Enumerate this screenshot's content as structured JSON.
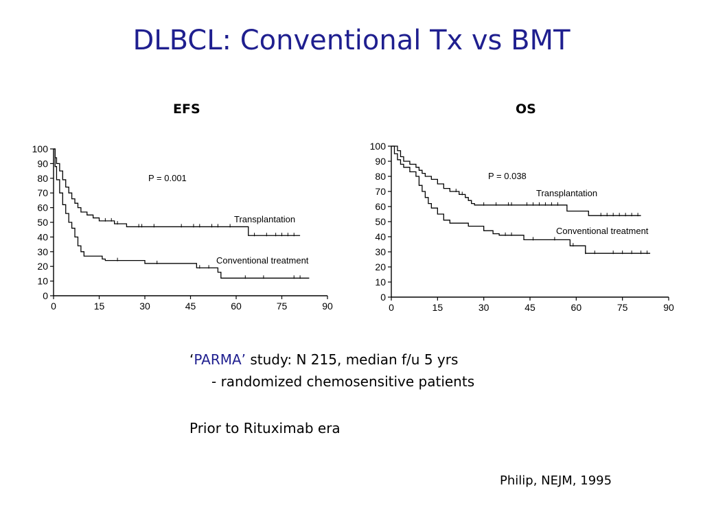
{
  "slide": {
    "title": "DLBCL: Conventional Tx vs BMT",
    "notes": {
      "quote_open": "‘",
      "study_name": "PARMA’",
      "study_rest": " study: N 215, median f/u 5 yrs",
      "line2": "- randomized chemosensitive patients",
      "line3": "Prior to Rituximab era"
    },
    "citation": "Philip, NEJM, 1995"
  },
  "chart_data": [
    {
      "type": "line",
      "title": "EFS",
      "xlabel": "",
      "ylabel": "",
      "xlim": [
        0,
        90
      ],
      "ylim": [
        0,
        100
      ],
      "xticks": [
        0,
        15,
        30,
        45,
        60,
        75,
        90
      ],
      "yticks": [
        0,
        10,
        20,
        30,
        40,
        50,
        60,
        70,
        80,
        90,
        100
      ],
      "annotation": "P = 0.001",
      "series": [
        {
          "name": "Transplantation",
          "step": [
            [
              0,
              100
            ],
            [
              0.5,
              94
            ],
            [
              1,
              90
            ],
            [
              2,
              85
            ],
            [
              3,
              79
            ],
            [
              4,
              74
            ],
            [
              5,
              70
            ],
            [
              6,
              66
            ],
            [
              7,
              63
            ],
            [
              8,
              60
            ],
            [
              9,
              57
            ],
            [
              11,
              55
            ],
            [
              13,
              53
            ],
            [
              15,
              51
            ],
            [
              20,
              49
            ],
            [
              24,
              47
            ],
            [
              45,
              47
            ],
            [
              50,
              47
            ],
            [
              64,
              47
            ],
            [
              64,
              41
            ],
            [
              81,
              41
            ]
          ],
          "censored": [
            17,
            19,
            21,
            28,
            29,
            33,
            42,
            46,
            48,
            52,
            54,
            58,
            66,
            70,
            73,
            75,
            77,
            79
          ]
        },
        {
          "name": "Conventional treatment",
          "step": [
            [
              0,
              100
            ],
            [
              0.5,
              88
            ],
            [
              1,
              79
            ],
            [
              2,
              70
            ],
            [
              3,
              62
            ],
            [
              4,
              56
            ],
            [
              5,
              50
            ],
            [
              6,
              46
            ],
            [
              7,
              40
            ],
            [
              8,
              34
            ],
            [
              9,
              30
            ],
            [
              10,
              27
            ],
            [
              16,
              25
            ],
            [
              17,
              24
            ],
            [
              30,
              22
            ],
            [
              47,
              19
            ],
            [
              54,
              16
            ],
            [
              55,
              12
            ],
            [
              84,
              12
            ]
          ],
          "censored": [
            21,
            34,
            48,
            51,
            63,
            69,
            79,
            81
          ]
        }
      ]
    },
    {
      "type": "line",
      "title": "OS",
      "xlabel": "",
      "ylabel": "",
      "xlim": [
        0,
        90
      ],
      "ylim": [
        0,
        100
      ],
      "xticks": [
        0,
        15,
        30,
        45,
        60,
        75,
        90
      ],
      "yticks": [
        0,
        10,
        20,
        30,
        40,
        50,
        60,
        70,
        80,
        90,
        100
      ],
      "annotation": "P = 0.038",
      "series": [
        {
          "name": "Transplantation",
          "step": [
            [
              0,
              100
            ],
            [
              2,
              97
            ],
            [
              3,
              93
            ],
            [
              4,
              90
            ],
            [
              6,
              88
            ],
            [
              8,
              86
            ],
            [
              9,
              84
            ],
            [
              10,
              82
            ],
            [
              11,
              80
            ],
            [
              13,
              78
            ],
            [
              15,
              75
            ],
            [
              17,
              72
            ],
            [
              19,
              70
            ],
            [
              22,
              68
            ],
            [
              24,
              66
            ],
            [
              25,
              64
            ],
            [
              26,
              62
            ],
            [
              27,
              61
            ],
            [
              56,
              61
            ],
            [
              57,
              57
            ],
            [
              64,
              57
            ],
            [
              64,
              54
            ],
            [
              81,
              54
            ]
          ],
          "censored": [
            21,
            23,
            30,
            34,
            38,
            39,
            44,
            46,
            48,
            50,
            52,
            54,
            68,
            70,
            72,
            74,
            76,
            78,
            80
          ]
        },
        {
          "name": "Conventional treatment",
          "step": [
            [
              0,
              100
            ],
            [
              1,
              95
            ],
            [
              2,
              91
            ],
            [
              3,
              88
            ],
            [
              4,
              86
            ],
            [
              6,
              83
            ],
            [
              8,
              80
            ],
            [
              9,
              74
            ],
            [
              10,
              70
            ],
            [
              11,
              66
            ],
            [
              12,
              62
            ],
            [
              13,
              59
            ],
            [
              15,
              55
            ],
            [
              17,
              51
            ],
            [
              19,
              49
            ],
            [
              25,
              47
            ],
            [
              30,
              44
            ],
            [
              33,
              42
            ],
            [
              35,
              41
            ],
            [
              43,
              38
            ],
            [
              57,
              38
            ],
            [
              58,
              34
            ],
            [
              63,
              34
            ],
            [
              63,
              29
            ],
            [
              84,
              29
            ]
          ],
          "censored": [
            37,
            39,
            46,
            53,
            59,
            63,
            66,
            72,
            75,
            78,
            81,
            83
          ]
        }
      ]
    }
  ]
}
